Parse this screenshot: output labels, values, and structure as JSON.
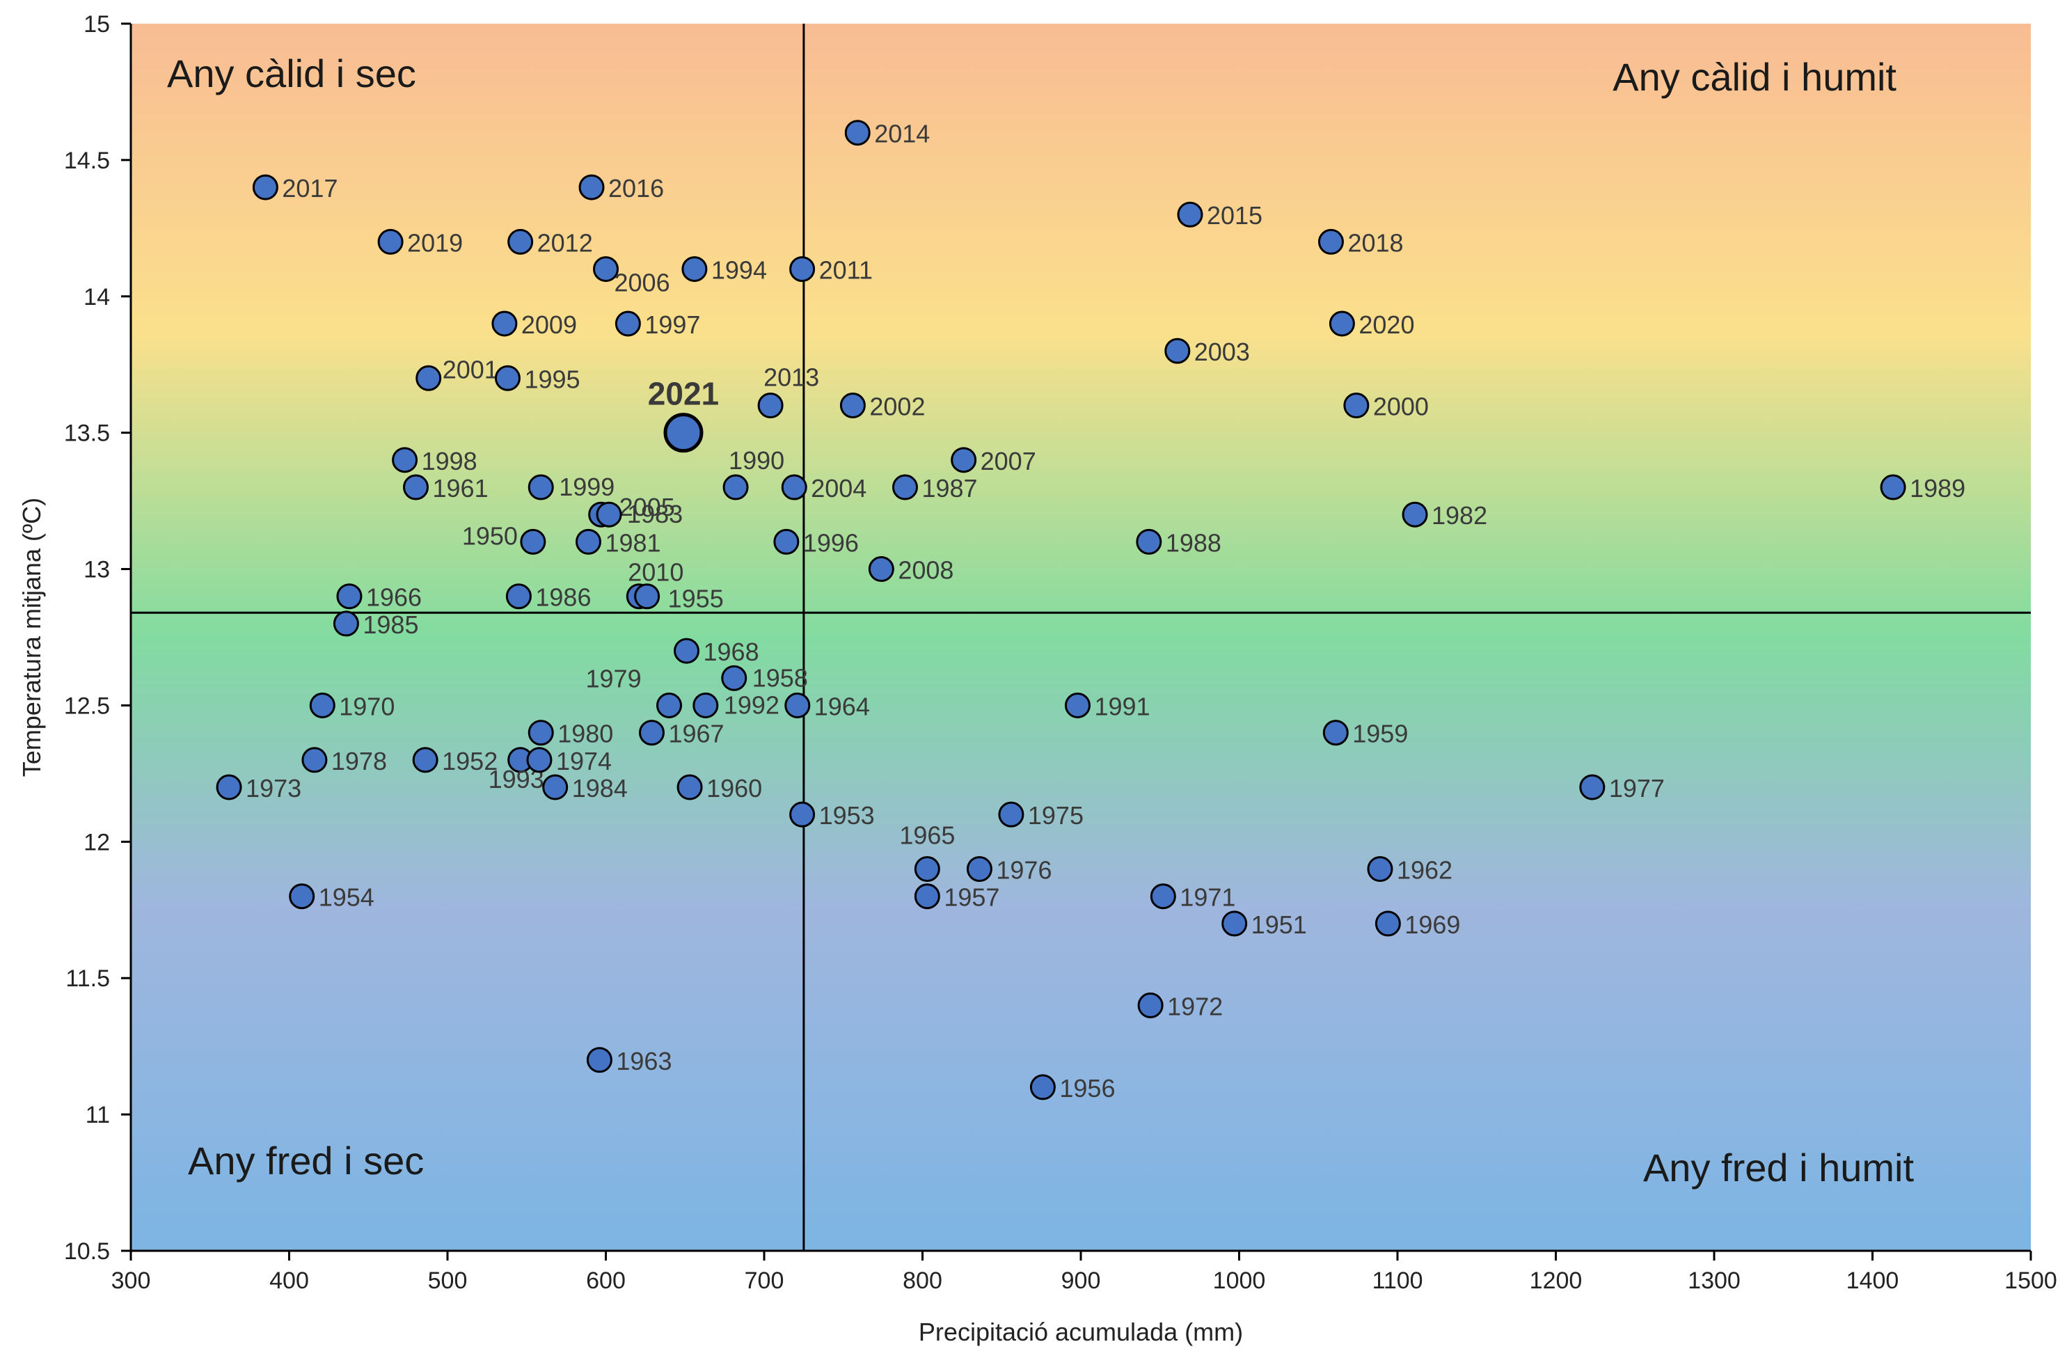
{
  "chart_data": {
    "type": "scatter",
    "xlabel": "Precipitació acumulada (mm)",
    "ylabel": "Temperatura mitjana (ºC)",
    "xlim": [
      300,
      1500
    ],
    "ylim": [
      10.5,
      15
    ],
    "x_ticks": [
      300,
      400,
      500,
      600,
      700,
      800,
      900,
      1000,
      1100,
      1200,
      1300,
      1400,
      1500
    ],
    "y_ticks": [
      10.5,
      11,
      11.5,
      12,
      12.5,
      13,
      13.5,
      14,
      14.5,
      15
    ],
    "reference_lines": {
      "x": 725,
      "y": 12.84
    },
    "quadrant_labels": {
      "top_left": "Any càlid i sec",
      "top_right": "Any càlid i humit",
      "bottom_left": "Any fred i sec",
      "bottom_right": "Any fred i humit"
    },
    "background_gradient": [
      "#f8bc94",
      "#fbe08c",
      "#82dba0",
      "#9fb6de",
      "#7db5e3"
    ],
    "point_color": "#4472c4",
    "highlight": "2021",
    "legend": "none",
    "grid": false,
    "points": [
      {
        "year": "2017",
        "x": 385,
        "y": 14.4
      },
      {
        "year": "2016",
        "x": 591,
        "y": 14.4
      },
      {
        "year": "2014",
        "x": 759,
        "y": 14.6
      },
      {
        "year": "2015",
        "x": 969,
        "y": 14.3
      },
      {
        "year": "2019",
        "x": 464,
        "y": 14.2
      },
      {
        "year": "2012",
        "x": 546,
        "y": 14.2
      },
      {
        "year": "2006",
        "x": 600,
        "y": 14.1
      },
      {
        "year": "1994",
        "x": 656,
        "y": 14.1
      },
      {
        "year": "2011",
        "x": 724,
        "y": 14.1
      },
      {
        "year": "2018",
        "x": 1058,
        "y": 14.2
      },
      {
        "year": "2009",
        "x": 536,
        "y": 13.9
      },
      {
        "year": "1997",
        "x": 614,
        "y": 13.9
      },
      {
        "year": "2020",
        "x": 1065,
        "y": 13.9
      },
      {
        "year": "2003",
        "x": 961,
        "y": 13.8
      },
      {
        "year": "2001",
        "x": 488,
        "y": 13.7
      },
      {
        "year": "1995",
        "x": 538,
        "y": 13.7
      },
      {
        "year": "2021",
        "x": 649,
        "y": 13.5
      },
      {
        "year": "2013",
        "x": 704,
        "y": 13.6
      },
      {
        "year": "2002",
        "x": 756,
        "y": 13.6
      },
      {
        "year": "2000",
        "x": 1074,
        "y": 13.6
      },
      {
        "year": "1998",
        "x": 473,
        "y": 13.4
      },
      {
        "year": "2007",
        "x": 826,
        "y": 13.4
      },
      {
        "year": "1961",
        "x": 480,
        "y": 13.3
      },
      {
        "year": "1999",
        "x": 559,
        "y": 13.3
      },
      {
        "year": "1990",
        "x": 682,
        "y": 13.3
      },
      {
        "year": "2004",
        "x": 719,
        "y": 13.3
      },
      {
        "year": "1987",
        "x": 789,
        "y": 13.3
      },
      {
        "year": "1989",
        "x": 1413,
        "y": 13.3
      },
      {
        "year": "2005",
        "x": 597,
        "y": 13.2
      },
      {
        "year": "1983",
        "x": 602,
        "y": 13.2
      },
      {
        "year": "1982",
        "x": 1111,
        "y": 13.2
      },
      {
        "year": "1950",
        "x": 554,
        "y": 13.1
      },
      {
        "year": "1981",
        "x": 589,
        "y": 13.1
      },
      {
        "year": "1996",
        "x": 714,
        "y": 13.1
      },
      {
        "year": "1988",
        "x": 943,
        "y": 13.1
      },
      {
        "year": "2008",
        "x": 774,
        "y": 13.0
      },
      {
        "year": "1966",
        "x": 438,
        "y": 12.9
      },
      {
        "year": "1986",
        "x": 545,
        "y": 12.9
      },
      {
        "year": "2010",
        "x": 621,
        "y": 12.9
      },
      {
        "year": "1955",
        "x": 626,
        "y": 12.9
      },
      {
        "year": "1985",
        "x": 436,
        "y": 12.8
      },
      {
        "year": "1968",
        "x": 651,
        "y": 12.7
      },
      {
        "year": "1958",
        "x": 681,
        "y": 12.6
      },
      {
        "year": "1970",
        "x": 421,
        "y": 12.5
      },
      {
        "year": "1979",
        "x": 640,
        "y": 12.5
      },
      {
        "year": "1992",
        "x": 663,
        "y": 12.5
      },
      {
        "year": "1964",
        "x": 721,
        "y": 12.5
      },
      {
        "year": "1991",
        "x": 898,
        "y": 12.5
      },
      {
        "year": "1980",
        "x": 559,
        "y": 12.4
      },
      {
        "year": "1967",
        "x": 629,
        "y": 12.4
      },
      {
        "year": "1959",
        "x": 1061,
        "y": 12.4
      },
      {
        "year": "1978",
        "x": 416,
        "y": 12.3
      },
      {
        "year": "1952",
        "x": 486,
        "y": 12.3
      },
      {
        "year": "1993",
        "x": 546,
        "y": 12.3
      },
      {
        "year": "1974",
        "x": 558,
        "y": 12.3
      },
      {
        "year": "1973",
        "x": 362,
        "y": 12.2
      },
      {
        "year": "1984",
        "x": 568,
        "y": 12.2
      },
      {
        "year": "1960",
        "x": 653,
        "y": 12.2
      },
      {
        "year": "1977",
        "x": 1223,
        "y": 12.2
      },
      {
        "year": "1953",
        "x": 724,
        "y": 12.1
      },
      {
        "year": "1975",
        "x": 856,
        "y": 12.1
      },
      {
        "year": "1965",
        "x": 803,
        "y": 11.9
      },
      {
        "year": "1976",
        "x": 836,
        "y": 11.9
      },
      {
        "year": "1962",
        "x": 1089,
        "y": 11.9
      },
      {
        "year": "1954",
        "x": 408,
        "y": 11.8
      },
      {
        "year": "1957",
        "x": 803,
        "y": 11.8
      },
      {
        "year": "1971",
        "x": 952,
        "y": 11.8
      },
      {
        "year": "1951",
        "x": 997,
        "y": 11.7
      },
      {
        "year": "1969",
        "x": 1094,
        "y": 11.7
      },
      {
        "year": "1972",
        "x": 944,
        "y": 11.4
      },
      {
        "year": "1963",
        "x": 596,
        "y": 11.2
      },
      {
        "year": "1956",
        "x": 876,
        "y": 11.1
      }
    ]
  }
}
